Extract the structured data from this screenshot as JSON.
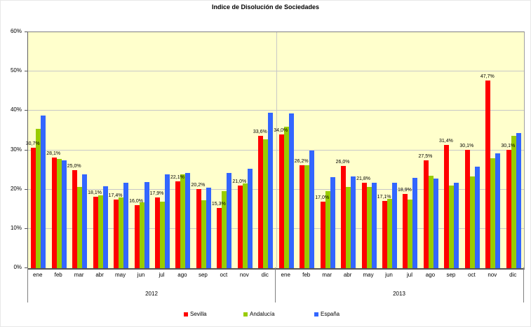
{
  "chart_data": {
    "type": "bar",
    "title": "Indice de Disolución de Sociedades",
    "plot_bg": "#FFFFCC",
    "grid": true,
    "legend_position": "bottom",
    "y_axis": {
      "min": 0,
      "max": 60,
      "step": 10,
      "suffix": "%"
    },
    "years": [
      {
        "label": "2012",
        "months": [
          "ene",
          "feb",
          "mar",
          "abr",
          "may",
          "jun",
          "jul",
          "ago",
          "sep",
          "oct",
          "nov",
          "dic"
        ]
      },
      {
        "label": "2013",
        "months": [
          "ene",
          "feb",
          "mar",
          "abr",
          "may",
          "jun",
          "jul",
          "ago",
          "sep",
          "oct",
          "nov",
          "dic"
        ]
      }
    ],
    "categories": [
      "ene",
      "feb",
      "mar",
      "abr",
      "may",
      "jun",
      "jul",
      "ago",
      "sep",
      "oct",
      "nov",
      "dic",
      "ene",
      "feb",
      "mar",
      "abr",
      "may",
      "jun",
      "jul",
      "ago",
      "sep",
      "oct",
      "nov",
      "dic"
    ],
    "series": [
      {
        "name": "Sevilla",
        "color": "#FF0000",
        "data_labels": true,
        "values": [
          30.7,
          28.1,
          25.0,
          18.1,
          17.4,
          16.0,
          17.9,
          22.1,
          20.2,
          15.3,
          21.0,
          33.6,
          34.0,
          26.2,
          17.0,
          26.0,
          21.8,
          17.1,
          18.9,
          27.5,
          31.4,
          30.1,
          47.7,
          30.1
        ]
      },
      {
        "name": "Andalucía",
        "color": "#99CC00",
        "data_labels": false,
        "values": [
          35.5,
          27.7,
          20.7,
          18.6,
          17.9,
          16.7,
          17.0,
          23.9,
          17.3,
          19.6,
          21.6,
          32.7,
          35.9,
          26.1,
          19.6,
          20.6,
          20.7,
          17.7,
          17.4,
          23.5,
          21.0,
          23.4,
          28.0,
          33.6
        ]
      },
      {
        "name": "España",
        "color": "#3366FF",
        "data_labels": false,
        "values": [
          38.8,
          27.4,
          23.9,
          20.8,
          21.7,
          21.9,
          23.8,
          24.2,
          20.5,
          24.3,
          25.2,
          39.5,
          39.3,
          29.9,
          23.2,
          23.4,
          21.8,
          21.8,
          22.9,
          22.8,
          21.8,
          25.8,
          29.2,
          34.3
        ]
      }
    ],
    "data_label_format": "decimal-comma-percent"
  }
}
